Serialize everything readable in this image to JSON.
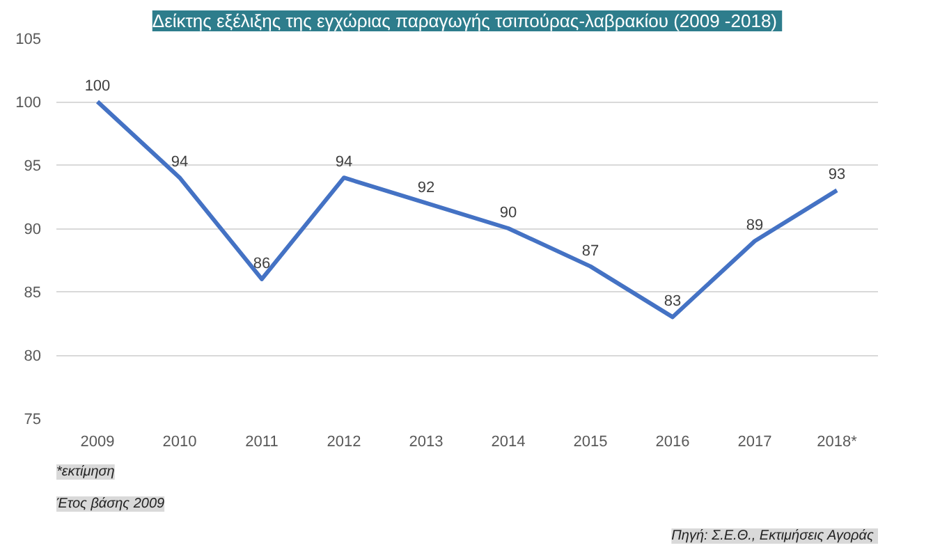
{
  "chart_data": {
    "type": "line",
    "title": "Δείκτης εξέλιξης της εγχώριας παραγωγής τσιπούρας-λαβρακίου  (2009 -2018)",
    "categories": [
      "2009",
      "2010",
      "2011",
      "2012",
      "2013",
      "2014",
      "2015",
      "2016",
      "2017",
      "2018*"
    ],
    "series": [
      {
        "color": "#4472c4",
        "values": [
          100,
          94,
          86,
          94,
          92,
          90,
          87,
          83,
          89,
          93
        ]
      }
    ],
    "ylim": [
      75,
      105
    ],
    "yticks": [
      75,
      80,
      85,
      90,
      95,
      100,
      105
    ],
    "grid": "y",
    "data_labels": true,
    "marker": "none",
    "line_style": "solid",
    "annotations": [
      "*εκτίμηση",
      "Έτος βάσης 2009",
      "Πηγή: Σ.Ε.Θ.,  Εκτιμήσεις Αγοράς"
    ]
  }
}
